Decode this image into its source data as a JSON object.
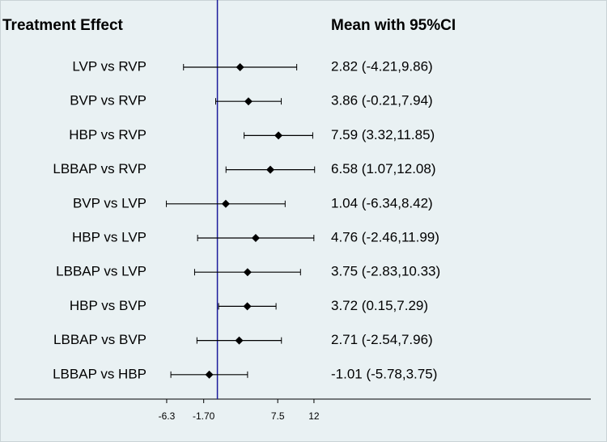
{
  "chart_data": {
    "type": "forest",
    "title": "Treatment Effect",
    "label_header": "Mean with 95%CI",
    "categories": [
      "LVP vs RVP",
      "BVP vs RVP",
      "HBP vs RVP",
      "LBBAP vs RVP",
      "BVP vs LVP",
      "HBP vs LVP",
      "LBBAP vs LVP",
      "HBP vs BVP",
      "LBBAP vs BVP",
      "LBBAP vs HBP"
    ],
    "values": [
      2.82,
      3.86,
      7.59,
      6.58,
      1.04,
      4.76,
      3.75,
      3.72,
      2.71,
      -1.01
    ],
    "lower": [
      -4.21,
      -0.21,
      3.32,
      1.07,
      -6.34,
      -2.46,
      -2.83,
      0.15,
      -2.54,
      -5.78
    ],
    "upper": [
      9.86,
      7.94,
      11.85,
      12.08,
      8.42,
      11.99,
      10.33,
      7.29,
      7.96,
      3.75
    ],
    "value_labels": [
      "2.82 (-4.21,9.86)",
      "3.86 (-0.21,7.94)",
      "7.59 (3.32,11.85)",
      "6.58 (1.07,12.08)",
      "1.04 (-6.34,8.42)",
      "4.76 (-2.46,11.99)",
      "3.75 (-2.83,10.33)",
      "3.72 (0.15,7.29)",
      "2.71 (-2.54,7.96)",
      "-1.01 (-5.78,3.75)"
    ],
    "ref_line": 0,
    "ref_color": "#1c1c9c",
    "color": "#000000",
    "xlim": [
      -25.2,
      46.4
    ],
    "xticks": [
      -6.3,
      {
        "value": -1.7,
        "label": "-1.70"
      },
      7.5,
      12
    ]
  }
}
